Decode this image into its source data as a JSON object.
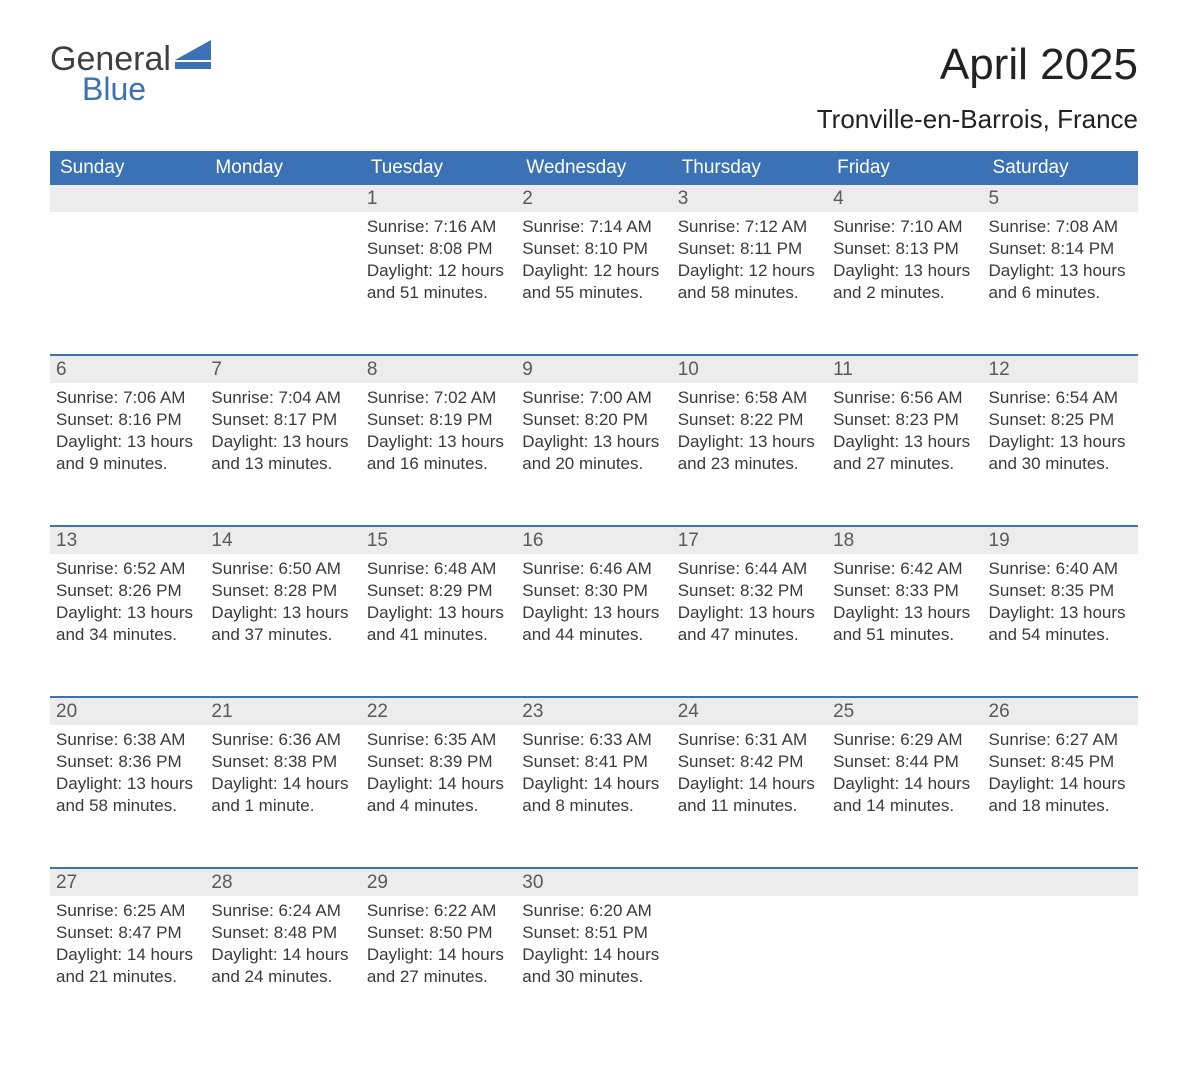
{
  "logo": {
    "word1": "General",
    "word2": "Blue",
    "mark_color": "#3a72b5",
    "text_color": "#3f3f3f"
  },
  "title": "April 2025",
  "location": "Tronville-en-Barrois, France",
  "colors": {
    "header_bg": "#3a72b5",
    "header_text": "#ffffff",
    "band_bg": "#ececec",
    "body_text": "#3a3a3a",
    "rule": "#3a72b5",
    "page_bg": "#ffffff"
  },
  "days_of_week": [
    "Sunday",
    "Monday",
    "Tuesday",
    "Wednesday",
    "Thursday",
    "Friday",
    "Saturday"
  ],
  "weeks": [
    [
      {
        "n": "",
        "sr": "",
        "ss": "",
        "dl": ""
      },
      {
        "n": "",
        "sr": "",
        "ss": "",
        "dl": ""
      },
      {
        "n": "1",
        "sr": "Sunrise: 7:16 AM",
        "ss": "Sunset: 8:08 PM",
        "dl": "Daylight: 12 hours and 51 minutes."
      },
      {
        "n": "2",
        "sr": "Sunrise: 7:14 AM",
        "ss": "Sunset: 8:10 PM",
        "dl": "Daylight: 12 hours and 55 minutes."
      },
      {
        "n": "3",
        "sr": "Sunrise: 7:12 AM",
        "ss": "Sunset: 8:11 PM",
        "dl": "Daylight: 12 hours and 58 minutes."
      },
      {
        "n": "4",
        "sr": "Sunrise: 7:10 AM",
        "ss": "Sunset: 8:13 PM",
        "dl": "Daylight: 13 hours and 2 minutes."
      },
      {
        "n": "5",
        "sr": "Sunrise: 7:08 AM",
        "ss": "Sunset: 8:14 PM",
        "dl": "Daylight: 13 hours and 6 minutes."
      }
    ],
    [
      {
        "n": "6",
        "sr": "Sunrise: 7:06 AM",
        "ss": "Sunset: 8:16 PM",
        "dl": "Daylight: 13 hours and 9 minutes."
      },
      {
        "n": "7",
        "sr": "Sunrise: 7:04 AM",
        "ss": "Sunset: 8:17 PM",
        "dl": "Daylight: 13 hours and 13 minutes."
      },
      {
        "n": "8",
        "sr": "Sunrise: 7:02 AM",
        "ss": "Sunset: 8:19 PM",
        "dl": "Daylight: 13 hours and 16 minutes."
      },
      {
        "n": "9",
        "sr": "Sunrise: 7:00 AM",
        "ss": "Sunset: 8:20 PM",
        "dl": "Daylight: 13 hours and 20 minutes."
      },
      {
        "n": "10",
        "sr": "Sunrise: 6:58 AM",
        "ss": "Sunset: 8:22 PM",
        "dl": "Daylight: 13 hours and 23 minutes."
      },
      {
        "n": "11",
        "sr": "Sunrise: 6:56 AM",
        "ss": "Sunset: 8:23 PM",
        "dl": "Daylight: 13 hours and 27 minutes."
      },
      {
        "n": "12",
        "sr": "Sunrise: 6:54 AM",
        "ss": "Sunset: 8:25 PM",
        "dl": "Daylight: 13 hours and 30 minutes."
      }
    ],
    [
      {
        "n": "13",
        "sr": "Sunrise: 6:52 AM",
        "ss": "Sunset: 8:26 PM",
        "dl": "Daylight: 13 hours and 34 minutes."
      },
      {
        "n": "14",
        "sr": "Sunrise: 6:50 AM",
        "ss": "Sunset: 8:28 PM",
        "dl": "Daylight: 13 hours and 37 minutes."
      },
      {
        "n": "15",
        "sr": "Sunrise: 6:48 AM",
        "ss": "Sunset: 8:29 PM",
        "dl": "Daylight: 13 hours and 41 minutes."
      },
      {
        "n": "16",
        "sr": "Sunrise: 6:46 AM",
        "ss": "Sunset: 8:30 PM",
        "dl": "Daylight: 13 hours and 44 minutes."
      },
      {
        "n": "17",
        "sr": "Sunrise: 6:44 AM",
        "ss": "Sunset: 8:32 PM",
        "dl": "Daylight: 13 hours and 47 minutes."
      },
      {
        "n": "18",
        "sr": "Sunrise: 6:42 AM",
        "ss": "Sunset: 8:33 PM",
        "dl": "Daylight: 13 hours and 51 minutes."
      },
      {
        "n": "19",
        "sr": "Sunrise: 6:40 AM",
        "ss": "Sunset: 8:35 PM",
        "dl": "Daylight: 13 hours and 54 minutes."
      }
    ],
    [
      {
        "n": "20",
        "sr": "Sunrise: 6:38 AM",
        "ss": "Sunset: 8:36 PM",
        "dl": "Daylight: 13 hours and 58 minutes."
      },
      {
        "n": "21",
        "sr": "Sunrise: 6:36 AM",
        "ss": "Sunset: 8:38 PM",
        "dl": "Daylight: 14 hours and 1 minute."
      },
      {
        "n": "22",
        "sr": "Sunrise: 6:35 AM",
        "ss": "Sunset: 8:39 PM",
        "dl": "Daylight: 14 hours and 4 minutes."
      },
      {
        "n": "23",
        "sr": "Sunrise: 6:33 AM",
        "ss": "Sunset: 8:41 PM",
        "dl": "Daylight: 14 hours and 8 minutes."
      },
      {
        "n": "24",
        "sr": "Sunrise: 6:31 AM",
        "ss": "Sunset: 8:42 PM",
        "dl": "Daylight: 14 hours and 11 minutes."
      },
      {
        "n": "25",
        "sr": "Sunrise: 6:29 AM",
        "ss": "Sunset: 8:44 PM",
        "dl": "Daylight: 14 hours and 14 minutes."
      },
      {
        "n": "26",
        "sr": "Sunrise: 6:27 AM",
        "ss": "Sunset: 8:45 PM",
        "dl": "Daylight: 14 hours and 18 minutes."
      }
    ],
    [
      {
        "n": "27",
        "sr": "Sunrise: 6:25 AM",
        "ss": "Sunset: 8:47 PM",
        "dl": "Daylight: 14 hours and 21 minutes."
      },
      {
        "n": "28",
        "sr": "Sunrise: 6:24 AM",
        "ss": "Sunset: 8:48 PM",
        "dl": "Daylight: 14 hours and 24 minutes."
      },
      {
        "n": "29",
        "sr": "Sunrise: 6:22 AM",
        "ss": "Sunset: 8:50 PM",
        "dl": "Daylight: 14 hours and 27 minutes."
      },
      {
        "n": "30",
        "sr": "Sunrise: 6:20 AM",
        "ss": "Sunset: 8:51 PM",
        "dl": "Daylight: 14 hours and 30 minutes."
      },
      {
        "n": "",
        "sr": "",
        "ss": "",
        "dl": ""
      },
      {
        "n": "",
        "sr": "",
        "ss": "",
        "dl": ""
      },
      {
        "n": "",
        "sr": "",
        "ss": "",
        "dl": ""
      }
    ]
  ]
}
